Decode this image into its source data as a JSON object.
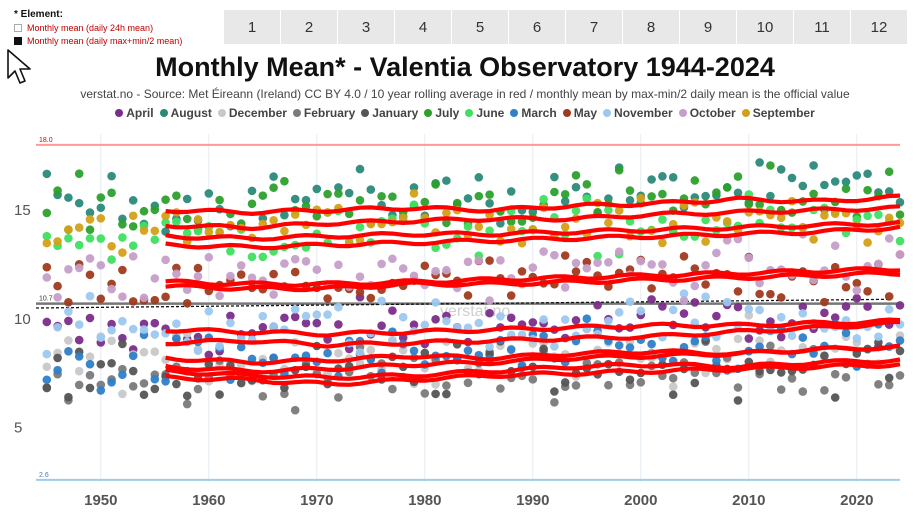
{
  "element_panel": {
    "title": "* Element:",
    "options": [
      {
        "label": "Monthly mean (daily 24h mean)",
        "checked": false
      },
      {
        "label": "Monthly mean (daily max+min/2 mean)",
        "checked": true
      }
    ]
  },
  "month_buttons": [
    "1",
    "2",
    "3",
    "4",
    "5",
    "6",
    "7",
    "8",
    "9",
    "10",
    "11",
    "12"
  ],
  "title": "Monthly Mean* - Valentia Observatory 1944-2024",
  "subtitle": "verstat.no - Source: Met Éireann (Ireland) CC BY 4.0 / 10 year rolling average in red / monthly mean by max-min/2 daily mean is the official value",
  "watermark": "verstat.no",
  "colors": {
    "rolling": "#ff0000",
    "max_line": "#ff9999",
    "min_line": "#9fcbe8",
    "mean_line": "#777777"
  },
  "chart_data": {
    "type": "scatter",
    "title": "Monthly Mean* - Valentia Observatory 1944-2024",
    "xlim": [
      1944,
      2024
    ],
    "ylim": [
      2.5,
      18.5
    ],
    "x_ticks": [
      1950,
      1960,
      1970,
      1980,
      1990,
      2000,
      2010,
      2020
    ],
    "y_ticks": [
      5,
      10,
      15
    ],
    "grid": "vertical",
    "legend_position": "top",
    "reference_lines": [
      {
        "label": "18.0",
        "value": 18.0,
        "style": "max"
      },
      {
        "label": "10.7",
        "value": 10.7,
        "style": "mean"
      },
      {
        "label": "2.6",
        "value": 2.6,
        "style": "min"
      }
    ],
    "trend_line": {
      "value_start": 10.5,
      "value_end": 10.9,
      "style": "dashed"
    },
    "series": [
      {
        "name": "April",
        "color": "#7b2d8b",
        "base": 9.2,
        "trend": 0.9,
        "rolling": [
          8.9,
          9.0,
          8.8,
          8.9,
          9.0,
          9.1,
          9.2,
          9.4,
          9.6,
          9.8
        ]
      },
      {
        "name": "August",
        "color": "#2a8a7a",
        "base": 15.2,
        "trend": 0.8,
        "rolling": [
          15.0,
          14.9,
          15.0,
          15.1,
          15.0,
          15.2,
          15.3,
          15.5,
          15.4,
          15.6
        ]
      },
      {
        "name": "December",
        "color": "#c8c8c8",
        "base": 8.1,
        "trend": 0.6,
        "rolling": [
          8.2,
          8.0,
          8.1,
          8.3,
          8.2,
          8.4,
          8.5,
          8.4,
          8.6,
          8.7
        ]
      },
      {
        "name": "February",
        "color": "#7a7a7a",
        "base": 7.0,
        "trend": 0.9,
        "rolling": [
          7.3,
          7.2,
          7.0,
          7.2,
          7.4,
          7.5,
          7.6,
          7.7,
          7.8,
          7.9
        ]
      },
      {
        "name": "January",
        "color": "#555555",
        "base": 7.2,
        "trend": 0.8,
        "rolling": [
          7.6,
          7.4,
          7.3,
          7.4,
          7.6,
          7.8,
          7.9,
          7.8,
          8.0,
          8.1
        ]
      },
      {
        "name": "July",
        "color": "#2ca02c",
        "base": 15.0,
        "trend": 0.7,
        "rolling": [
          14.3,
          14.2,
          14.4,
          14.5,
          14.6,
          14.6,
          14.8,
          14.9,
          15.0,
          15.1
        ]
      },
      {
        "name": "June",
        "color": "#3ee060",
        "base": 13.6,
        "trend": 0.9,
        "rolling": [
          13.4,
          13.3,
          13.4,
          13.5,
          13.6,
          13.7,
          13.8,
          13.9,
          14.0,
          14.2
        ]
      },
      {
        "name": "March",
        "color": "#2f7fc9",
        "base": 7.8,
        "trend": 1.0,
        "rolling": [
          7.8,
          7.6,
          7.7,
          7.9,
          8.0,
          8.2,
          8.3,
          8.4,
          8.6,
          8.7
        ]
      },
      {
        "name": "May",
        "color": "#a03a1e",
        "base": 11.2,
        "trend": 0.9,
        "rolling": [
          11.5,
          11.4,
          11.4,
          11.6,
          11.6,
          11.7,
          11.8,
          11.9,
          12.0,
          12.1
        ]
      },
      {
        "name": "November",
        "color": "#9cc8ef",
        "base": 9.4,
        "trend": 0.7,
        "rolling": [
          9.5,
          9.4,
          9.3,
          9.4,
          9.5,
          9.6,
          9.7,
          9.7,
          9.8,
          9.9
        ]
      },
      {
        "name": "October",
        "color": "#c59fc9",
        "base": 11.8,
        "trend": 0.7,
        "rolling": [
          11.7,
          11.6,
          11.6,
          11.7,
          11.8,
          11.9,
          12.0,
          12.1,
          12.2,
          12.3
        ]
      },
      {
        "name": "September",
        "color": "#d4a017",
        "base": 14.0,
        "trend": 0.8,
        "rolling": [
          13.8,
          13.7,
          13.8,
          13.9,
          13.9,
          14.0,
          14.1,
          14.2,
          14.3,
          14.4
        ]
      }
    ]
  }
}
